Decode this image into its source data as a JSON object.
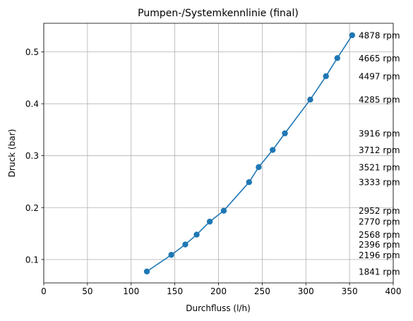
{
  "chart_data": {
    "type": "line",
    "title": "Pumpen-/Systemkennlinie (final)",
    "xlabel": "Durchfluss (l/h)",
    "ylabel": "Druck (bar)",
    "xlim": [
      0,
      400
    ],
    "ylim": [
      0.055,
      0.555
    ],
    "xticks": [
      0,
      50,
      100,
      150,
      200,
      250,
      300,
      350,
      400
    ],
    "yticks": [
      0.1,
      0.2,
      0.3,
      0.4,
      0.5
    ],
    "grid": true,
    "colors": {
      "series": "#1f77b4"
    },
    "series": [
      {
        "x": [
          118,
          146,
          162,
          175,
          190,
          206,
          235,
          246,
          262,
          276,
          305,
          323,
          336,
          353
        ],
        "y": [
          0.077,
          0.109,
          0.129,
          0.148,
          0.173,
          0.194,
          0.249,
          0.278,
          0.311,
          0.343,
          0.408,
          0.453,
          0.488,
          0.532
        ]
      }
    ],
    "annotations": [
      {
        "text": "4878 rpm",
        "y": 0.532
      },
      {
        "text": "4665 rpm",
        "y": 0.488
      },
      {
        "text": "4497 rpm",
        "y": 0.453
      },
      {
        "text": "4285 rpm",
        "y": 0.408
      },
      {
        "text": "3916 rpm",
        "y": 0.343
      },
      {
        "text": "3712 rpm",
        "y": 0.311
      },
      {
        "text": "3521 rpm",
        "y": 0.278
      },
      {
        "text": "3333 rpm",
        "y": 0.249
      },
      {
        "text": "2952 rpm",
        "y": 0.194
      },
      {
        "text": "2770 rpm",
        "y": 0.173
      },
      {
        "text": "2568 rpm",
        "y": 0.148
      },
      {
        "text": "2396 rpm",
        "y": 0.129
      },
      {
        "text": "2196 rpm",
        "y": 0.109
      },
      {
        "text": "1841 rpm",
        "y": 0.077
      }
    ]
  }
}
